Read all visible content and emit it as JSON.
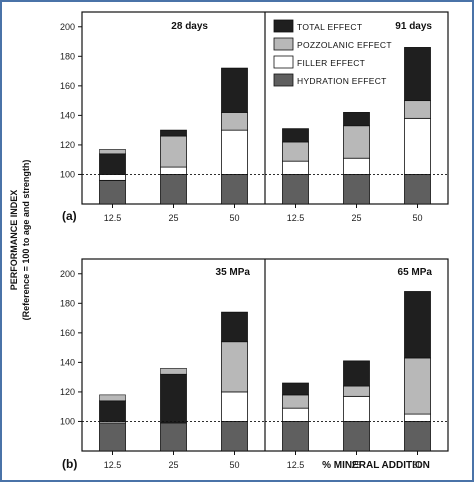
{
  "colors": {
    "total": "#1f1f1f",
    "pozzolanic": "#b8b8b8",
    "filler": "#ffffff",
    "hydration": "#5f5f5f",
    "border": "#4a73a8"
  },
  "y_axis_label_line1": "PERFORMANCE INDEX",
  "y_axis_label_line2": "(Reference = 100 to age and strength)",
  "x_axis_label": "% MINERAL ADDITION",
  "legend": [
    "TOTAL EFFECT",
    "POZZOLANIC EFFECT",
    "FILLER EFFECT",
    "HYDRATION EFFECT"
  ],
  "y_ticks": [
    100,
    120,
    140,
    160,
    180,
    200
  ],
  "reference_line": 100,
  "row_labels": [
    "(a)",
    "(b)"
  ],
  "chart_data": [
    {
      "type": "bar",
      "title": "28 days",
      "categories": [
        "12.5",
        "25",
        "50"
      ],
      "ylim": [
        80,
        210
      ],
      "segments_order": [
        "hydration",
        "filler",
        "pozzolanic",
        "total"
      ],
      "series": [
        {
          "name": "HYDRATION EFFECT",
          "values": [
            96,
            100,
            100
          ]
        },
        {
          "name": "FILLER EFFECT",
          "values": [
            4,
            5,
            30
          ]
        },
        {
          "name": "POZZOLANIC EFFECT",
          "values": [
            0,
            21,
            12
          ]
        },
        {
          "name": "TOTAL EFFECT",
          "values": [
            114,
            130,
            172
          ]
        }
      ],
      "extra_top": [
        {
          "index": 0,
          "from": 114,
          "to": 117
        }
      ]
    },
    {
      "type": "bar",
      "title": "91 days",
      "categories": [
        "12.5",
        "25",
        "50"
      ],
      "ylim": [
        80,
        210
      ],
      "segments_order": [
        "hydration",
        "filler",
        "pozzolanic",
        "total"
      ],
      "series": [
        {
          "name": "HYDRATION EFFECT",
          "values": [
            100,
            100,
            100
          ]
        },
        {
          "name": "FILLER EFFECT",
          "values": [
            9,
            11,
            38
          ]
        },
        {
          "name": "POZZOLANIC EFFECT",
          "values": [
            13,
            22,
            12
          ]
        },
        {
          "name": "TOTAL EFFECT",
          "values": [
            131,
            142,
            186
          ]
        }
      ]
    },
    {
      "type": "bar",
      "title": "35 MPa",
      "categories": [
        "12.5",
        "25",
        "50"
      ],
      "ylim": [
        80,
        210
      ],
      "segments_order": [
        "hydration",
        "filler",
        "pozzolanic",
        "total"
      ],
      "series": [
        {
          "name": "HYDRATION EFFECT",
          "values": [
            99,
            99,
            100
          ]
        },
        {
          "name": "FILLER EFFECT",
          "values": [
            1,
            0,
            20
          ]
        },
        {
          "name": "POZZOLANIC EFFECT",
          "values": [
            0,
            0,
            34
          ]
        },
        {
          "name": "TOTAL EFFECT",
          "values": [
            114,
            132,
            174
          ]
        }
      ],
      "extra_top": [
        {
          "index": 0,
          "from": 114,
          "to": 118
        },
        {
          "index": 1,
          "from": 132,
          "to": 136
        }
      ]
    },
    {
      "type": "bar",
      "title": "65 MPa",
      "categories": [
        "12.5",
        "25",
        "50"
      ],
      "ylim": [
        80,
        210
      ],
      "segments_order": [
        "hydration",
        "filler",
        "pozzolanic",
        "total"
      ],
      "series": [
        {
          "name": "HYDRATION EFFECT",
          "values": [
            100,
            100,
            100
          ]
        },
        {
          "name": "FILLER EFFECT",
          "values": [
            9,
            17,
            5
          ]
        },
        {
          "name": "POZZOLANIC EFFECT",
          "values": [
            9,
            7,
            38
          ]
        },
        {
          "name": "TOTAL EFFECT",
          "values": [
            126,
            141,
            188
          ]
        }
      ]
    }
  ]
}
